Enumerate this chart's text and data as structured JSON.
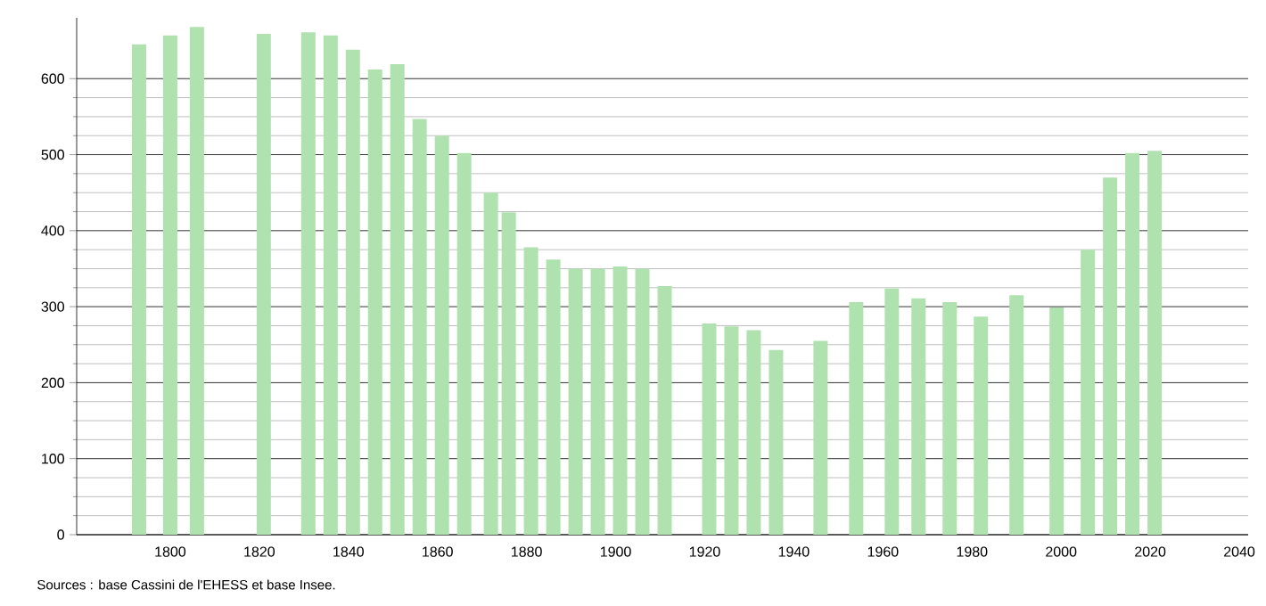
{
  "chart_data": {
    "type": "bar",
    "x": [
      1793,
      1800,
      1806,
      1821,
      1831,
      1836,
      1841,
      1846,
      1851,
      1856,
      1861,
      1866,
      1872,
      1876,
      1881,
      1886,
      1891,
      1896,
      1901,
      1906,
      1911,
      1921,
      1926,
      1931,
      1936,
      1946,
      1954,
      1962,
      1968,
      1975,
      1982,
      1990,
      1999,
      2006,
      2011,
      2016,
      2021
    ],
    "values": [
      645,
      657,
      668,
      659,
      661,
      657,
      638,
      612,
      619,
      547,
      525,
      502,
      450,
      424,
      378,
      362,
      350,
      350,
      353,
      350,
      327,
      278,
      274,
      269,
      243,
      255,
      306,
      324,
      311,
      306,
      287,
      315,
      299,
      375,
      470,
      502,
      505
    ],
    "color": "#b0e2b0",
    "xlim": [
      1779,
      2042
    ],
    "xticks": [
      1800,
      1820,
      1840,
      1860,
      1880,
      1900,
      1920,
      1940,
      1960,
      1980,
      2000,
      2020,
      2040
    ],
    "ylim": [
      0,
      680
    ],
    "yticks": [
      0,
      100,
      200,
      300,
      400,
      500,
      600
    ],
    "grid": "y",
    "annotations": [
      "Sources : base Cassini de l'EHESS et base Insee."
    ]
  }
}
